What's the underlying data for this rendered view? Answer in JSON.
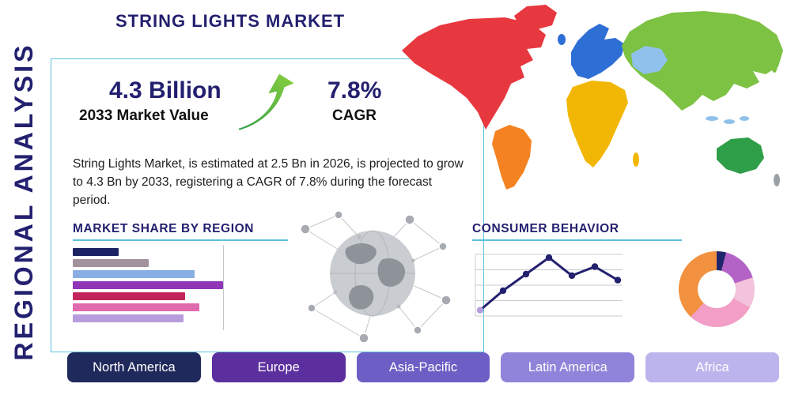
{
  "page": {
    "title": "STRING LIGHTS MARKET",
    "vertical_label": "REGIONAL ANALYSIS"
  },
  "stats": {
    "market_value": "4.3 Billion",
    "market_value_caption": "2033 Market Value",
    "cagr_value": "7.8%",
    "cagr_caption": "CAGR"
  },
  "description": "String Lights Market, is estimated at 2.5 Bn in 2026, is projected to grow to 4.3 Bn by 2033, registering a CAGR of 7.8% during the forecast period.",
  "sections": {
    "market_share_heading": "MARKET SHARE BY REGION",
    "consumer_behavior_heading": "CONSUMER BEHAVIOR"
  },
  "regions": [
    {
      "label": "North America",
      "color": "#20295c"
    },
    {
      "label": "Europe",
      "color": "#5c2f9e"
    },
    {
      "label": "Asia-Pacific",
      "color": "#6c5ec4"
    },
    {
      "label": "Latin America",
      "color": "#9084da"
    },
    {
      "label": "Africa",
      "color": "#bcb4ec"
    }
  ],
  "accents": {
    "navy": "#23206f",
    "teal": "#5bc2dc"
  },
  "map_colors": {
    "north_america": "#e8383f",
    "greenland": "#e8383f",
    "south_america": "#f58220",
    "europe": "#2e6fd6",
    "uk": "#2e6fd6",
    "africa": "#f2b705",
    "madagascar": "#f2b705",
    "asia": "#7dc243",
    "central_asia": "#8fc1ec",
    "indonesia": "#8fc1ec",
    "australia": "#2f9e49",
    "japan": "#7dc243",
    "new_zealand": "#9aa0a6"
  },
  "chart_data": [
    {
      "type": "bar",
      "title": "MARKET SHARE BY REGION",
      "orientation": "horizontal",
      "values": [
        29,
        48,
        77,
        95,
        71,
        80,
        70
      ],
      "colors": [
        "#1b2364",
        "#a3919c",
        "#89aee3",
        "#8f35b5",
        "#c2255c",
        "#e06aae",
        "#b79ddd"
      ],
      "xlim": [
        0,
        100
      ],
      "grid": "single-vertical-line"
    },
    {
      "type": "line",
      "title": "CONSUMER BEHAVIOR",
      "x": [
        0,
        1,
        2,
        3,
        4,
        5,
        6
      ],
      "y": [
        12,
        38,
        60,
        82,
        58,
        70,
        52
      ],
      "line_color": "#23206f",
      "first_point_color": "#b39ddb",
      "gridlines": 5
    },
    {
      "type": "pie",
      "variant": "donut",
      "slices": [
        {
          "value": 4,
          "color": "#20266b"
        },
        {
          "value": 16,
          "color": "#b363c6"
        },
        {
          "value": 13,
          "color": "#f2c3da"
        },
        {
          "value": 29,
          "color": "#f29ec6"
        },
        {
          "value": 38,
          "color": "#f2913f"
        }
      ]
    }
  ]
}
